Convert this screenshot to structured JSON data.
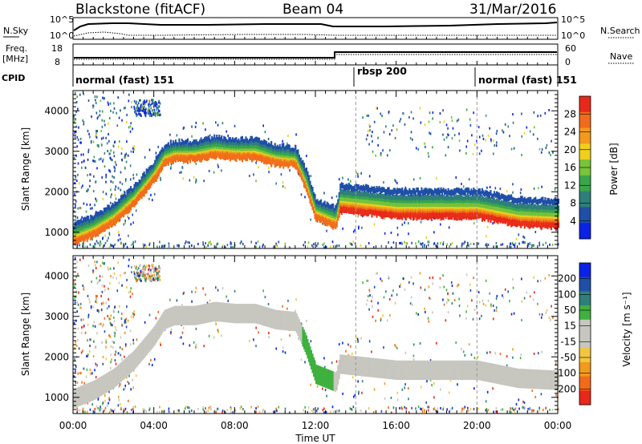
{
  "header": {
    "radar": "Blackstone (fitACF)",
    "beam": "Beam 04",
    "date": "31/Mar/2016"
  },
  "top_panel": {
    "left_label": "N.Sky",
    "right_label": "N.Search",
    "ticks_left": [
      "10^5",
      "10^0"
    ],
    "ticks_right": [
      "10^5",
      "10^0"
    ]
  },
  "freq_panel": {
    "left_label_1": "Freq.",
    "left_label_2": "[MHz]",
    "right_label": "Nave",
    "ticks_left": [
      "18",
      "8"
    ],
    "ticks_right": [
      "60",
      "0"
    ]
  },
  "cpid": {
    "label": "CPID",
    "segments": [
      {
        "text": "normal (fast) 151",
        "start_h": 0,
        "end_h": 14
      },
      {
        "text": "rbsp 200",
        "start_h": 14,
        "end_h": 20
      },
      {
        "text": "normal (fast) 151",
        "start_h": 20,
        "end_h": 24
      }
    ]
  },
  "colors": {
    "power": [
      "#0a22e6",
      "#1f4fa8",
      "#2f7f7a",
      "#3aa64a",
      "#78c43a",
      "#f0cf1d",
      "#f29a1b",
      "#f26a1c",
      "#e8281a"
    ],
    "velocity": [
      "#e8281a",
      "#f26a1c",
      "#f29a1b",
      "#f2c640",
      "#c7c7c0",
      "#c7c7c0",
      "#3fb13f",
      "#2f7f7a",
      "#1f4fa8",
      "#0a22e6"
    ]
  },
  "power_bar": {
    "title": "Power [dB]",
    "ticks": [
      "4",
      "8",
      "12",
      "16",
      "20",
      "24",
      "28"
    ]
  },
  "velocity_bar": {
    "title": "Velocity [m s⁻¹]",
    "ticks": [
      "-200",
      "-100",
      "-50",
      "-15",
      "15",
      "50",
      "100",
      "200"
    ]
  },
  "panel_labels": {
    "y_label": "Slant Range [km]",
    "x_label": "Time UT"
  },
  "chart_data": {
    "type": "heatmap",
    "title": "Blackstone (fitACF) Beam 04 31/Mar/2016",
    "xlabel": "Time UT",
    "ylabel": "Slant Range [km]",
    "x_ticks": [
      "00:00",
      "04:00",
      "08:00",
      "12:00",
      "16:00",
      "20:00",
      "00:00"
    ],
    "xlim_hours": [
      0,
      24
    ],
    "y_ticks": [
      1000,
      2000,
      3000,
      4000
    ],
    "ylim": [
      600,
      4500
    ],
    "power_clim_db": [
      0,
      32
    ],
    "velocity_clim_ms": [
      -250,
      250
    ],
    "dashed_lines_hours": [
      14,
      20
    ],
    "main_band": [
      {
        "t": 0,
        "r": 950
      },
      {
        "t": 1,
        "r": 1150
      },
      {
        "t": 2,
        "r": 1450
      },
      {
        "t": 3,
        "r": 1900
      },
      {
        "t": 4,
        "r": 2500
      },
      {
        "t": 4.5,
        "r": 2900
      },
      {
        "t": 5,
        "r": 3000
      },
      {
        "t": 6,
        "r": 3000
      },
      {
        "t": 7,
        "r": 3100
      },
      {
        "t": 8,
        "r": 3050
      },
      {
        "t": 9,
        "r": 3050
      },
      {
        "t": 10,
        "r": 2900
      },
      {
        "t": 11,
        "r": 2850
      },
      {
        "t": 11.5,
        "r": 2300
      },
      {
        "t": 12,
        "r": 1550
      },
      {
        "t": 13,
        "r": 1350
      },
      {
        "t": 13.2,
        "r": 1800
      },
      {
        "t": 16,
        "r": 1650
      },
      {
        "t": 20,
        "r": 1650
      },
      {
        "t": 22,
        "r": 1450
      },
      {
        "t": 24,
        "r": 1400
      }
    ]
  }
}
